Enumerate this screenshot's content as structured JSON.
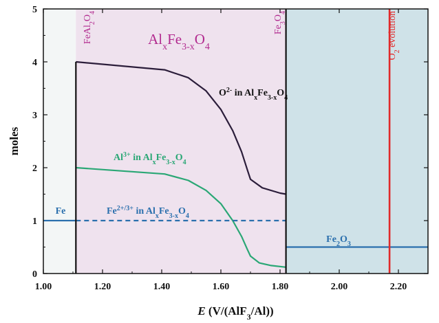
{
  "chart_data": {
    "type": "line",
    "xlabel": {
      "var": "E",
      "rest": " (V/(AlF",
      "sub": "3",
      "tail": "/Al))"
    },
    "ylabel": "moles",
    "xlim": [
      1.0,
      2.3
    ],
    "ylim": [
      0,
      5
    ],
    "x_ticks": [
      "1.00",
      "1.20",
      "1.40",
      "1.60",
      "1.80",
      "2.00",
      "2.20"
    ],
    "x_tick_values": [
      1.0,
      1.2,
      1.4,
      1.6,
      1.8,
      2.0,
      2.2
    ],
    "y_ticks": [
      "0",
      "1",
      "2",
      "3",
      "4",
      "5"
    ],
    "y_tick_values": [
      0,
      1,
      2,
      3,
      4,
      5
    ],
    "regions": [
      {
        "name": "Fe region",
        "x0": 1.0,
        "x1": 1.11,
        "color": "#f3f6f6"
      },
      {
        "name": "AlxFe3-xO4 region",
        "x0": 1.11,
        "x1": 1.82,
        "color": "#efe2ee"
      },
      {
        "name": "Fe2O3 region",
        "x0": 1.82,
        "x1": 2.3,
        "color": "#cfe2e8"
      }
    ],
    "boundaries": [
      {
        "x": 1.11,
        "y0": 0,
        "y1": 4.0,
        "color": "#111111"
      },
      {
        "x": 1.82,
        "y0": 0,
        "y1": 5,
        "color": "#111111"
      }
    ],
    "series": [
      {
        "name": "O2- in AlxFe3-xO4",
        "color": "#2b1d3a",
        "dash": false,
        "x": [
          1.11,
          1.41,
          1.49,
          1.55,
          1.6,
          1.64,
          1.67,
          1.69,
          1.7,
          1.74,
          1.8,
          1.82
        ],
        "y": [
          4.0,
          3.85,
          3.7,
          3.45,
          3.1,
          2.7,
          2.3,
          1.95,
          1.78,
          1.62,
          1.52,
          1.5
        ]
      },
      {
        "name": "Al3+ in AlxFe3-xO4",
        "color": "#2aa775",
        "dash": false,
        "x": [
          1.11,
          1.41,
          1.49,
          1.55,
          1.6,
          1.64,
          1.67,
          1.69,
          1.7,
          1.73,
          1.77,
          1.82
        ],
        "y": [
          2.0,
          1.88,
          1.76,
          1.57,
          1.32,
          1.0,
          0.7,
          0.45,
          0.33,
          0.2,
          0.15,
          0.12
        ]
      },
      {
        "name": "Fe2+/3+ in AlxFe3-xO4",
        "color": "#2a6fad",
        "dash": true,
        "x": [
          1.11,
          1.82
        ],
        "y": [
          1.0,
          1.0
        ]
      },
      {
        "name": "Fe",
        "color": "#2a6fad",
        "dash": false,
        "x": [
          1.0,
          1.11
        ],
        "y": [
          1.0,
          1.0
        ]
      },
      {
        "name": "Fe2O3",
        "color": "#2a6fad",
        "dash": false,
        "x": [
          1.82,
          2.3
        ],
        "y": [
          0.5,
          0.5
        ]
      }
    ],
    "vlines": [
      {
        "name": "O2 evolution",
        "x": 2.17,
        "color": "#e12a2a"
      }
    ],
    "annotations": {
      "region_title": {
        "main": "Al",
        "sub1": "x",
        "mid": "Fe",
        "sub2": "3-x",
        "mid2": "O",
        "sub3": "4",
        "color": "#b22a8f"
      },
      "feal2o4": {
        "a": "FeAl",
        "sub1": "2",
        "b": "O",
        "sub2": "4",
        "color": "#b22a8f"
      },
      "fe3o4": {
        "a": "Fe",
        "sub1": "3",
        "b": "O",
        "sub2": "4",
        "color": "#b22a8f"
      },
      "o2_evolution": {
        "a": "O",
        "sub": "2",
        "b": " evolution",
        "color": "#e12a2a"
      },
      "o_label": {
        "a": "O",
        "sup": "2-",
        "b": " in Al",
        "sub1": "x",
        "c": "Fe",
        "sub2": "3-x",
        "d": "O",
        "sub3": "4",
        "color": "#111111"
      },
      "al_label": {
        "a": "Al",
        "sup": "3+",
        "b": " in Al",
        "sub1": "x",
        "c": "Fe",
        "sub2": "3-x",
        "d": "O",
        "sub3": "4",
        "color": "#2aa775"
      },
      "fe_label": {
        "a": "Fe",
        "sup": "2+/3+",
        "b": " in Al",
        "sub1": "x",
        "c": "Fe",
        "sub2": "3-x",
        "d": "O",
        "sub3": "4",
        "color": "#2a6fad"
      },
      "fe_left": {
        "text": "Fe",
        "color": "#2a6fad"
      },
      "fe2o3": {
        "a": "Fe",
        "sub1": "2",
        "b": "O",
        "sub2": "3",
        "color": "#2a6fad"
      }
    }
  }
}
